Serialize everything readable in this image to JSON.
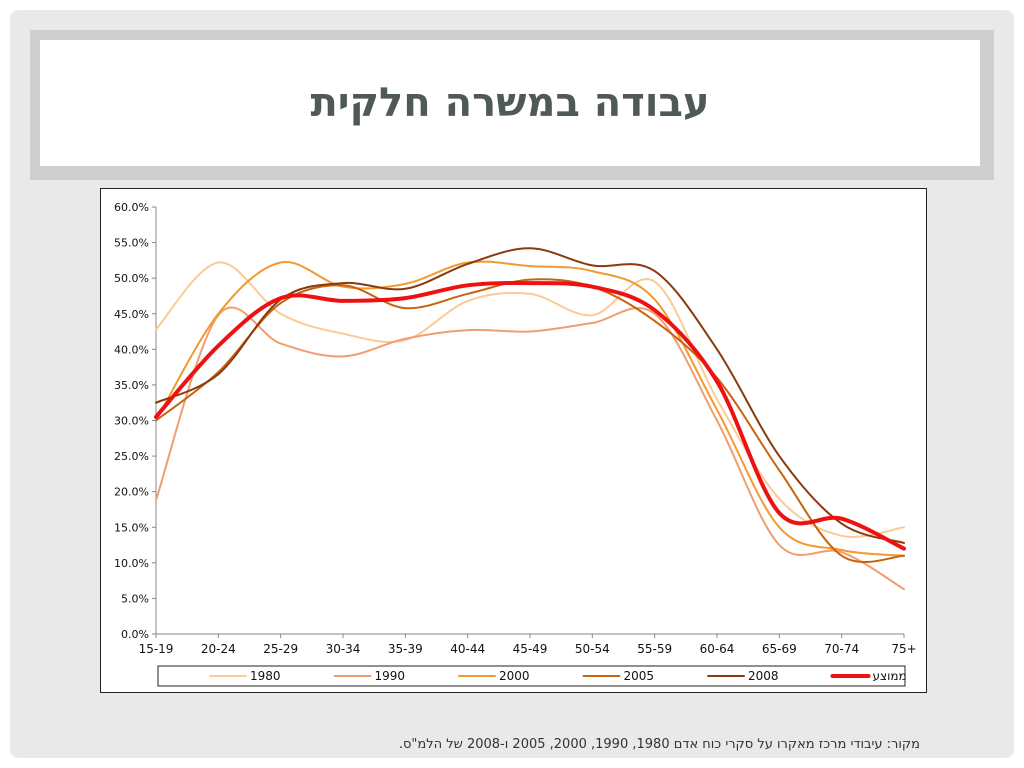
{
  "title": "עבודה במשרה חלקית",
  "source_note": "מקור: עיבודי מרכז מאקרו על סקרי כוח אדם 1980, 1990, 2000, 2005 ו-2008 של הלמ\"ס.",
  "chart_data": {
    "type": "line",
    "title": "",
    "xlabel": "",
    "ylabel": "",
    "ylim": [
      0,
      60
    ],
    "yticks": [
      0,
      5,
      10,
      15,
      20,
      25,
      30,
      35,
      40,
      45,
      50,
      55,
      60
    ],
    "y_tick_format": "percent-1-decimal",
    "grid": false,
    "smooth": true,
    "legend_position": "bottom",
    "categories": [
      "15-19",
      "20-24",
      "25-29",
      "30-34",
      "35-39",
      "40-44",
      "45-49",
      "50-54",
      "55-59",
      "60-64",
      "65-69",
      "70-74",
      "75+"
    ],
    "series": [
      {
        "name": "1980",
        "color": "#fbcb95",
        "width": 2,
        "values": [
          42.8,
          52.2,
          45.0,
          42.2,
          41.3,
          46.8,
          47.8,
          44.8,
          49.5,
          33.0,
          19.0,
          13.8,
          15.0
        ]
      },
      {
        "name": "1990",
        "color": "#f19d6f",
        "width": 2,
        "values": [
          18.8,
          44.8,
          40.8,
          39.0,
          41.5,
          42.7,
          42.5,
          43.7,
          45.0,
          30.0,
          12.5,
          11.5,
          6.3
        ]
      },
      {
        "name": "2000",
        "color": "#f29a2e",
        "width": 2,
        "values": [
          30.0,
          45.0,
          52.2,
          48.8,
          49.2,
          52.2,
          51.7,
          51.0,
          47.0,
          31.5,
          15.0,
          11.8,
          11.0
        ]
      },
      {
        "name": "2005",
        "color": "#c8630f",
        "width": 2,
        "values": [
          30.0,
          36.8,
          46.5,
          49.0,
          45.8,
          47.8,
          49.8,
          48.8,
          44.0,
          36.0,
          23.0,
          11.0,
          11.0
        ]
      },
      {
        "name": "2008",
        "color": "#8a3a0e",
        "width": 2,
        "values": [
          32.5,
          36.5,
          47.0,
          49.3,
          48.5,
          52.0,
          54.2,
          51.8,
          51.0,
          40.0,
          25.0,
          15.5,
          12.8
        ]
      },
      {
        "name": "ממוצע",
        "color": "#ee1111",
        "width": 4,
        "values": [
          30.5,
          40.5,
          47.2,
          46.8,
          47.2,
          49.0,
          49.3,
          48.8,
          45.5,
          35.5,
          17.0,
          16.2,
          12.0
        ]
      }
    ]
  }
}
